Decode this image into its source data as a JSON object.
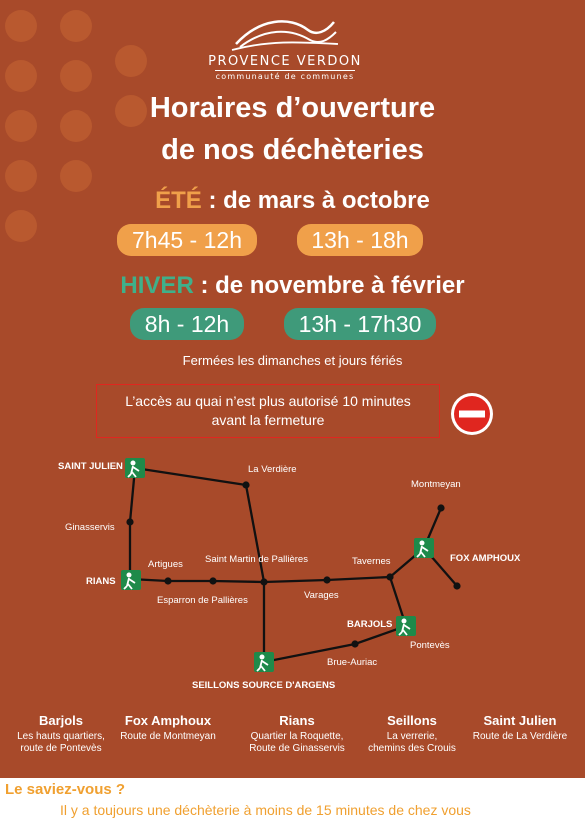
{
  "logo": {
    "name": "PROVENCE VERDON",
    "subtitle": "communauté de communes"
  },
  "heading": {
    "line1": "Horaires d’ouverture",
    "line2": "de nos déchèteries"
  },
  "summer": {
    "label": "ÉTÉ",
    "period": " : de mars à octobre",
    "slot1": "7h45 - 12h",
    "slot2": "13h - 18h",
    "color": "#f0a04a"
  },
  "winter": {
    "label": "HIVER",
    "period": " : de novembre à février",
    "slot1": "8h - 12h",
    "slot2": "13h - 17h30",
    "color": "#3f9a7a"
  },
  "closed_note": "Fermées les dimanches et jours fériés",
  "notice": {
    "line1": "L’accès au quai n’est plus autorisé 10 minutes",
    "line2": "avant la fermeture"
  },
  "map": {
    "nodes": [
      {
        "id": "saint-julien",
        "label": "SAINT JULIEN",
        "depot": true
      },
      {
        "id": "la-verdiere",
        "label": "La Verdière",
        "depot": false
      },
      {
        "id": "ginasservis",
        "label": "Ginasservis",
        "depot": false
      },
      {
        "id": "artigues",
        "label": "Artigues",
        "depot": false
      },
      {
        "id": "rians",
        "label": "RIANS",
        "depot": true
      },
      {
        "id": "saint-martin",
        "label": "Saint Martin de Pallières",
        "depot": false
      },
      {
        "id": "esparron",
        "label": "Esparron de Pallières",
        "depot": false
      },
      {
        "id": "varages",
        "label": "Varages",
        "depot": false
      },
      {
        "id": "tavernes",
        "label": "Tavernes",
        "depot": false
      },
      {
        "id": "montmeyan",
        "label": "Montmeyan",
        "depot": false
      },
      {
        "id": "fox-amphoux",
        "label": "FOX AMPHOUX",
        "depot": true
      },
      {
        "id": "barjols",
        "label": "BARJOLS",
        "depot": true
      },
      {
        "id": "ponteves",
        "label": "Pontevès",
        "depot": false
      },
      {
        "id": "brue-auriac",
        "label": "Brue-Auriac",
        "depot": false
      },
      {
        "id": "seillons",
        "label": "SEILLONS SOURCE D'ARGENS",
        "depot": true
      }
    ]
  },
  "addresses": [
    {
      "town": "Barjols",
      "addr1": "Les hauts quartiers,",
      "addr2": "route de Pontevès"
    },
    {
      "town": "Fox Amphoux",
      "addr1": "Route de Montmeyan",
      "addr2": ""
    },
    {
      "town": "Rians",
      "addr1": "Quartier la Roquette,",
      "addr2": "Route de Ginasservis"
    },
    {
      "town": "Seillons",
      "addr1": "La verrerie,",
      "addr2": "chemins des Crouis"
    },
    {
      "town": "Saint Julien",
      "addr1": "Route de La Verdière",
      "addr2": ""
    }
  ],
  "did_you_know": {
    "title": "Le saviez-vous ?",
    "text": "Il y a toujours une déchèterie à moins de 15 minutes de chez vous"
  },
  "colors": {
    "background": "#a84a2a",
    "accent_orange": "#f0a030",
    "alert_red": "#e0261f",
    "depot_green": "#1e8a4a"
  },
  "icons": {
    "depot": "recycling-person-icon",
    "no_entry": "no-entry-sign-icon"
  }
}
